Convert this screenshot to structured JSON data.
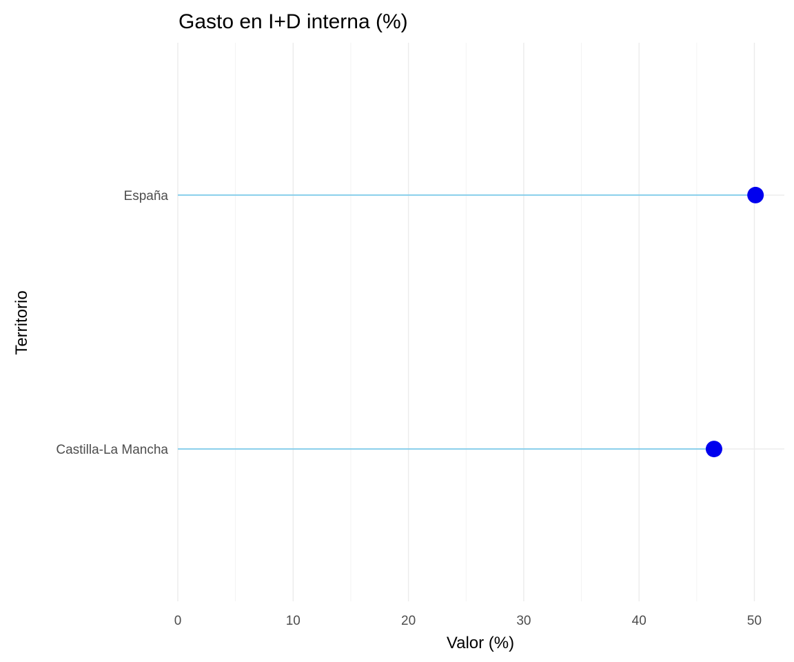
{
  "chart_data": {
    "type": "lollipop",
    "title": "Gasto en I+D interna (%)",
    "xlabel": "Valor (%)",
    "ylabel": "Territorio",
    "categories": [
      "Castilla-La Mancha",
      "España"
    ],
    "values": [
      46.5,
      50.1
    ],
    "xlim": [
      0,
      52.6
    ],
    "xticks": [
      0,
      10,
      20,
      30,
      40,
      50
    ],
    "xminor": [
      5,
      15,
      25,
      35,
      45
    ],
    "grid": true,
    "legend": "none",
    "colors": {
      "point": "#0000ee",
      "stem": "#87ceeb",
      "grid_major": "#ebebeb",
      "grid_minor": "#f2f2f2"
    }
  }
}
